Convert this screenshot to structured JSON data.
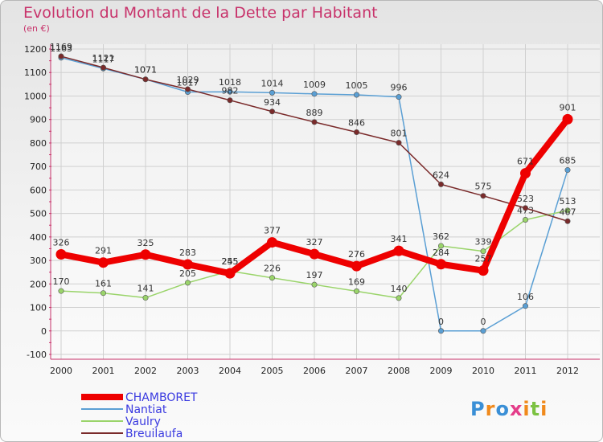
{
  "title": "Evolution du Montant de la Dette par Habitant",
  "subtitle": "(en €)",
  "logo": "Proxiti",
  "chart_data": {
    "type": "line",
    "title": "Evolution du Montant de la Dette par Habitant",
    "ylabel": "(en €)",
    "ylim": [
      -100,
      1200
    ],
    "yticks": [
      -100,
      0,
      100,
      200,
      300,
      400,
      500,
      600,
      700,
      800,
      900,
      1000,
      1100,
      1200
    ],
    "x": [
      "2000",
      "2001",
      "2002",
      "2003",
      "2004",
      "2005",
      "2006",
      "2007",
      "2008",
      "2009",
      "2010",
      "2011",
      "2012"
    ],
    "grid": true,
    "legend_position": "bottom-left",
    "series": [
      {
        "name": "CHAMBORET",
        "color": "#ee0000",
        "values": [
          326,
          291,
          325,
          283,
          245,
          377,
          327,
          276,
          341,
          284,
          257,
          671,
          901
        ]
      },
      {
        "name": "Nantiat",
        "color": "#5a9fd4",
        "values": [
          1163,
          1117,
          1071,
          1017,
          1018,
          1014,
          1009,
          1005,
          996,
          0,
          0,
          106,
          685
        ]
      },
      {
        "name": "Vaulry",
        "color": "#9ad46a",
        "values": [
          170,
          161,
          141,
          205,
          255,
          226,
          197,
          169,
          140,
          362,
          339,
          473,
          513
        ]
      },
      {
        "name": "Breuilaufa",
        "color": "#7a2a2a",
        "values": [
          1169,
          1121,
          1071,
          1029,
          982,
          934,
          889,
          846,
          801,
          624,
          575,
          523,
          467
        ]
      }
    ]
  }
}
